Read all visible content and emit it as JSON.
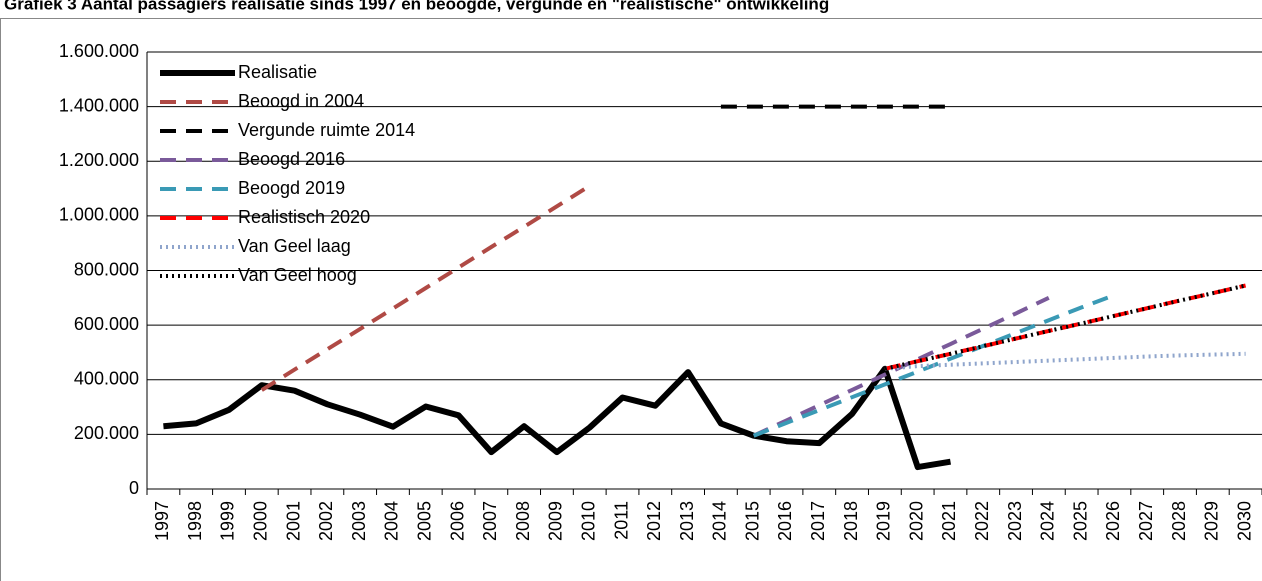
{
  "chart_data": {
    "type": "line",
    "title": "Grafiek 3 Aantal passagiers realisatie sinds 1997 en beoogde, vergunde en \"realistische\" ontwikkeling",
    "categories": [
      "1997",
      "1998",
      "1999",
      "2000",
      "2001",
      "2002",
      "2003",
      "2004",
      "2005",
      "2006",
      "2007",
      "2008",
      "2009",
      "2010",
      "2011",
      "2012",
      "2013",
      "2014",
      "2015",
      "2016",
      "2017",
      "2018",
      "2019",
      "2020",
      "2021",
      "2022",
      "2023",
      "2024",
      "2025",
      "2026",
      "2027",
      "2028",
      "2029",
      "2030"
    ],
    "ylim": [
      0,
      1600000
    ],
    "yticks": [
      0,
      {
        "value": 200000,
        "label": "200.000"
      },
      {
        "value": 400000,
        "label": "400.000"
      },
      {
        "value": 600000,
        "label": "600.000"
      },
      {
        "value": 800000,
        "label": "800.000"
      },
      {
        "value": 1000000,
        "label": "1.000.000"
      },
      {
        "value": 1200000,
        "label": "1.200.000"
      },
      {
        "value": 1400000,
        "label": "1.400.000"
      },
      {
        "value": 1600000,
        "label": "1.600.000"
      }
    ],
    "grid": true,
    "legend": "top-left",
    "series": [
      {
        "name": "Realisatie",
        "color": "#000000",
        "line_style": "solid",
        "values": [
          230000,
          240000,
          290000,
          380000,
          360000,
          310000,
          272000,
          228000,
          302000,
          270000,
          135000,
          230000,
          135000,
          225000,
          335000,
          305000,
          428000,
          240000,
          195000,
          175000,
          168000,
          275000,
          440000,
          80000,
          100000,
          null,
          null,
          null,
          null,
          null,
          null,
          null,
          null,
          null
        ]
      },
      {
        "name": "Beoogd in 2004",
        "color": "#b04a45",
        "line_style": "dashed",
        "values": [
          null,
          null,
          null,
          362000,
          437000,
          512000,
          586000,
          661000,
          736000,
          811000,
          886000,
          960000,
          1035000,
          1110000,
          null,
          null,
          null,
          null,
          null,
          null,
          null,
          null,
          null,
          null,
          null,
          null,
          null,
          null,
          null,
          null,
          null,
          null,
          null,
          null
        ]
      },
      {
        "name": "Vergunde ruimte 2014",
        "color": "#000000",
        "line_style": "dashed",
        "values": [
          null,
          null,
          null,
          null,
          null,
          null,
          null,
          null,
          null,
          null,
          null,
          null,
          null,
          null,
          null,
          null,
          null,
          1400000,
          1400000,
          1400000,
          1400000,
          1400000,
          1400000,
          1400000,
          1400000,
          null,
          null,
          null,
          null,
          null,
          null,
          null,
          null,
          null
        ]
      },
      {
        "name": "Beoogd 2016",
        "color": "#7a5a9a",
        "line_style": "dashed",
        "values": [
          null,
          null,
          null,
          null,
          null,
          null,
          null,
          null,
          null,
          null,
          null,
          null,
          null,
          null,
          null,
          null,
          null,
          null,
          195000,
          251000,
          307000,
          363000,
          419000,
          475000,
          531000,
          587000,
          643000,
          700000,
          null,
          null,
          null,
          null,
          null,
          null
        ]
      },
      {
        "name": "Beoogd 2019",
        "color": "#3a9ab5",
        "line_style": "dashed",
        "values": [
          null,
          null,
          null,
          null,
          null,
          null,
          null,
          null,
          null,
          null,
          null,
          null,
          null,
          null,
          null,
          null,
          null,
          null,
          195000,
          242000,
          289000,
          336000,
          383000,
          430000,
          477000,
          524000,
          571000,
          618000,
          665000,
          710000,
          null,
          null,
          null,
          null
        ]
      },
      {
        "name": "Realistisch 2020",
        "color": "#ff0000",
        "line_style": "dashed",
        "values": [
          null,
          null,
          null,
          null,
          null,
          null,
          null,
          null,
          null,
          null,
          null,
          null,
          null,
          null,
          null,
          null,
          null,
          null,
          null,
          null,
          null,
          null,
          440000,
          468000,
          495000,
          523000,
          551000,
          579000,
          606000,
          634000,
          662000,
          690000,
          717000,
          745000
        ]
      },
      {
        "name": "Van Geel laag",
        "color": "#8fa5cc",
        "line_style": "dotted",
        "values": [
          null,
          null,
          null,
          null,
          null,
          null,
          null,
          null,
          null,
          null,
          null,
          null,
          null,
          null,
          null,
          null,
          null,
          null,
          null,
          null,
          null,
          null,
          440000,
          450000,
          455000,
          460000,
          465000,
          470000,
          475000,
          480000,
          485000,
          489000,
          492000,
          495000
        ]
      },
      {
        "name": "Van Geel hoog",
        "color": "#000000",
        "line_style": "dotted",
        "values": [
          null,
          null,
          null,
          null,
          null,
          null,
          null,
          null,
          null,
          null,
          null,
          null,
          null,
          null,
          null,
          null,
          null,
          null,
          null,
          null,
          null,
          null,
          440000,
          468000,
          495000,
          523000,
          551000,
          579000,
          606000,
          634000,
          662000,
          690000,
          717000,
          745000
        ]
      }
    ]
  }
}
